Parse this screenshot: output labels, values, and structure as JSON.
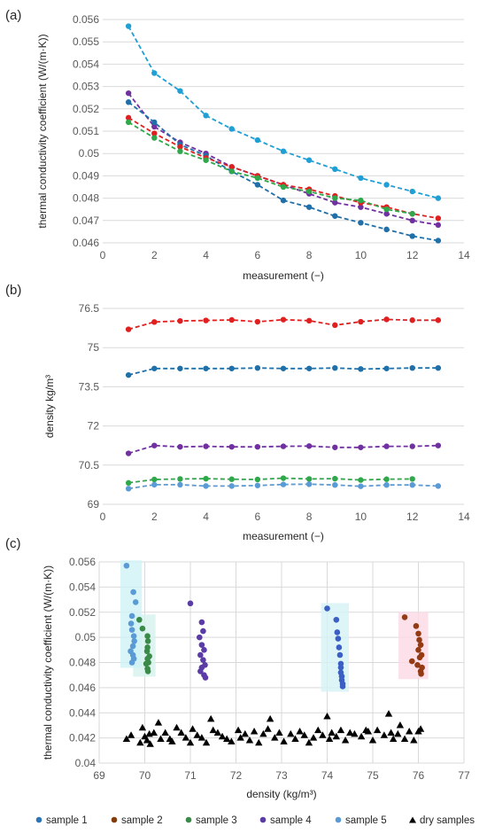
{
  "figure": {
    "panels": [
      {
        "id": "a",
        "label": "(a)"
      },
      {
        "id": "b",
        "label": "(b)"
      },
      {
        "id": "c",
        "label": "(c)"
      }
    ],
    "legend": [
      {
        "name": "sample 1",
        "color": "#2e75b6",
        "marker": "circle"
      },
      {
        "name": "sample 2",
        "color": "#843c0c",
        "marker": "circle"
      },
      {
        "name": "sample 3",
        "color": "#3a8a4a",
        "marker": "circle"
      },
      {
        "name": "sample 4",
        "color": "#5b3ba6",
        "marker": "circle"
      },
      {
        "name": "sample 5",
        "color": "#5b9bd5",
        "marker": "circle"
      },
      {
        "name": "dry samples",
        "color": "#000000",
        "marker": "triangle"
      }
    ]
  },
  "chart_data": [
    {
      "id": "a",
      "type": "line",
      "xlabel": "measurement (−)",
      "ylabel": "thermal conductivity coefficient (W/(m·K))",
      "xlim": [
        0,
        14
      ],
      "ylim": [
        0.046,
        0.056
      ],
      "xticks": [
        "0",
        "2",
        "4",
        "6",
        "8",
        "10",
        "12",
        "14"
      ],
      "yticks": [
        "0.046",
        "0.047",
        "0.048",
        "0.049",
        "0.05",
        "0.051",
        "0.052",
        "0.053",
        "0.054",
        "0.055",
        "0.056"
      ],
      "grid": "horizontal",
      "style": "dashed-line-with-markers",
      "series": [
        {
          "color": "#1f9fd4",
          "x": [
            1,
            2,
            3,
            4,
            5,
            6,
            7,
            8,
            9,
            10,
            11,
            12,
            13
          ],
          "y": [
            0.0557,
            0.0536,
            0.0528,
            0.0517,
            0.0511,
            0.0506,
            0.0501,
            0.0497,
            0.0493,
            0.0489,
            0.0486,
            0.0483,
            0.048
          ]
        },
        {
          "color": "#7030a0",
          "x": [
            1,
            2,
            3,
            4,
            5,
            6,
            7,
            8,
            9,
            10,
            11,
            12,
            13
          ],
          "y": [
            0.0527,
            0.0512,
            0.0505,
            0.05,
            0.0494,
            0.049,
            0.0486,
            0.0482,
            0.0478,
            0.0476,
            0.0473,
            0.047,
            0.0468
          ]
        },
        {
          "color": "#1f6fa8",
          "x": [
            1,
            2,
            3,
            4,
            5,
            6,
            7,
            8,
            9,
            10,
            11,
            12,
            13
          ],
          "y": [
            0.0523,
            0.0514,
            0.0504,
            0.0499,
            0.0492,
            0.0486,
            0.0479,
            0.0476,
            0.0472,
            0.0469,
            0.0466,
            0.0463,
            0.0461
          ]
        },
        {
          "color": "#e02020",
          "x": [
            1,
            2,
            3,
            4,
            5,
            6,
            7,
            8,
            9,
            10,
            11,
            12,
            13
          ],
          "y": [
            0.0516,
            0.0509,
            0.0503,
            0.0498,
            0.0494,
            0.049,
            0.0486,
            0.0484,
            0.0481,
            0.0478,
            0.0476,
            0.0473,
            0.0471
          ]
        },
        {
          "color": "#2ea84a",
          "x": [
            1,
            2,
            3,
            4,
            5,
            6,
            7,
            8,
            9,
            10,
            11,
            12
          ],
          "y": [
            0.0514,
            0.0507,
            0.0501,
            0.0497,
            0.0492,
            0.0489,
            0.0485,
            0.0483,
            0.048,
            0.0479,
            0.0475,
            0.0473
          ]
        }
      ]
    },
    {
      "id": "b",
      "type": "line",
      "xlabel": "measurement (−)",
      "ylabel": "density kg/m³",
      "xlim": [
        0,
        14
      ],
      "ylim": [
        69,
        76.5
      ],
      "xticks": [
        "0",
        "2",
        "4",
        "6",
        "8",
        "10",
        "12",
        "14"
      ],
      "yticks": [
        "69",
        "70.5",
        "72",
        "73.5",
        "75",
        "76.5"
      ],
      "grid": "horizontal",
      "style": "dashed-line-with-markers",
      "series": [
        {
          "color": "#e02020",
          "x": [
            1,
            2,
            3,
            4,
            5,
            6,
            7,
            8,
            9,
            10,
            11,
            12,
            13
          ],
          "y": [
            75.7,
            75.98,
            76.02,
            76.04,
            76.06,
            75.99,
            76.07,
            76.03,
            75.86,
            75.99,
            76.08,
            76.05,
            76.05
          ]
        },
        {
          "color": "#1f6fa8",
          "x": [
            1,
            2,
            3,
            4,
            5,
            6,
            7,
            8,
            9,
            10,
            11,
            12,
            13
          ],
          "y": [
            73.95,
            74.2,
            74.2,
            74.2,
            74.2,
            74.22,
            74.2,
            74.2,
            74.22,
            74.18,
            74.2,
            74.22,
            74.22
          ]
        },
        {
          "color": "#7030a0",
          "x": [
            1,
            2,
            3,
            4,
            5,
            6,
            7,
            8,
            9,
            10,
            11,
            12,
            13
          ],
          "y": [
            70.95,
            71.25,
            71.2,
            71.22,
            71.2,
            71.2,
            71.22,
            71.23,
            71.18,
            71.18,
            71.22,
            71.22,
            71.25
          ]
        },
        {
          "color": "#2ea84a",
          "x": [
            1,
            2,
            3,
            4,
            5,
            6,
            7,
            8,
            9,
            10,
            11,
            12
          ],
          "y": [
            69.82,
            69.95,
            69.97,
            69.98,
            69.96,
            69.95,
            70.0,
            69.97,
            69.98,
            69.93,
            69.96,
            69.97
          ]
        },
        {
          "color": "#5b9bd5",
          "x": [
            1,
            2,
            3,
            4,
            5,
            6,
            7,
            8,
            9,
            10,
            11,
            12,
            13
          ],
          "y": [
            69.6,
            69.75,
            69.75,
            69.7,
            69.7,
            69.72,
            69.76,
            69.77,
            69.74,
            69.69,
            69.74,
            69.74,
            69.7
          ]
        }
      ]
    },
    {
      "id": "c",
      "type": "scatter",
      "xlabel": "density (kg/m³)",
      "ylabel": "thermal conductivity coefficient (W/(m·K))",
      "xlim": [
        69,
        77
      ],
      "ylim": [
        0.04,
        0.056
      ],
      "xticks": [
        "69",
        "70",
        "71",
        "72",
        "73",
        "74",
        "75",
        "76",
        "77"
      ],
      "yticks": [
        "0.04",
        "0.042",
        "0.044",
        "0.046",
        "0.048",
        "0.05",
        "0.052",
        "0.054",
        "0.056"
      ],
      "grid": "both",
      "series": [
        {
          "name": "sample 1",
          "color": "#3b5fc4",
          "x": [
            74.0,
            74.2,
            74.22,
            74.24,
            74.26,
            74.28,
            74.3,
            74.3,
            74.3,
            74.32,
            74.32,
            74.34,
            74.34
          ],
          "y": [
            0.0523,
            0.0514,
            0.0504,
            0.0499,
            0.0492,
            0.0486,
            0.0479,
            0.0476,
            0.0472,
            0.0469,
            0.0466,
            0.0463,
            0.0461
          ]
        },
        {
          "name": "sample 2",
          "color": "#943b14",
          "x": [
            75.7,
            75.95,
            76.0,
            76.02,
            76.05,
            76.0,
            76.07,
            76.03,
            75.86,
            75.98,
            76.08,
            76.05,
            76.06
          ],
          "y": [
            0.0516,
            0.0509,
            0.0503,
            0.0498,
            0.0494,
            0.049,
            0.0486,
            0.0484,
            0.0481,
            0.0478,
            0.0476,
            0.0473,
            0.0471
          ]
        },
        {
          "name": "sample 3",
          "color": "#3a8a4a",
          "x": [
            69.88,
            69.95,
            70.06,
            70.07,
            70.06,
            70.05,
            70.1,
            70.06,
            70.08,
            70.03,
            70.06,
            70.07
          ],
          "y": [
            0.0514,
            0.0507,
            0.0501,
            0.0497,
            0.0492,
            0.0489,
            0.0485,
            0.0483,
            0.048,
            0.0479,
            0.0475,
            0.0473
          ]
        },
        {
          "name": "sample 4",
          "color": "#5b3ba6",
          "x": [
            71.0,
            71.25,
            71.28,
            71.2,
            71.25,
            71.3,
            71.22,
            71.28,
            71.32,
            71.25,
            71.22,
            71.3,
            71.33
          ],
          "y": [
            0.0527,
            0.0512,
            0.0505,
            0.05,
            0.0494,
            0.049,
            0.0486,
            0.0482,
            0.0478,
            0.0476,
            0.0473,
            0.047,
            0.0468
          ]
        },
        {
          "name": "sample 5",
          "color": "#5b9bd5",
          "x": [
            69.6,
            69.75,
            69.8,
            69.72,
            69.7,
            69.72,
            69.76,
            69.77,
            69.74,
            69.69,
            69.74,
            69.76,
            69.72
          ],
          "y": [
            0.0557,
            0.0536,
            0.0528,
            0.0517,
            0.0511,
            0.0506,
            0.0501,
            0.0497,
            0.0493,
            0.0489,
            0.0486,
            0.0483,
            0.048
          ]
        },
        {
          "name": "dry samples",
          "color": "#000000",
          "x": [
            69.6,
            69.7,
            69.9,
            69.95,
            70.0,
            70.05,
            70.1,
            70.12,
            70.2,
            70.3,
            70.35,
            70.45,
            70.55,
            70.6,
            70.7,
            70.8,
            70.9,
            71.0,
            71.05,
            71.15,
            71.25,
            71.35,
            71.45,
            71.5,
            71.6,
            71.7,
            71.8,
            71.9,
            72.05,
            72.1,
            72.2,
            72.3,
            72.4,
            72.5,
            72.6,
            72.7,
            72.75,
            72.85,
            72.95,
            73.05,
            73.2,
            73.3,
            73.4,
            73.5,
            73.6,
            73.7,
            73.8,
            73.9,
            74.0,
            74.05,
            74.1,
            74.2,
            74.3,
            74.4,
            74.5,
            74.6,
            74.75,
            74.85,
            74.9,
            75.0,
            75.1,
            75.25,
            75.35,
            75.4,
            75.45,
            75.55,
            75.6,
            75.7,
            75.8,
            75.9,
            76.0,
            76.05
          ],
          "y": [
            0.0419,
            0.0422,
            0.0416,
            0.0428,
            0.0421,
            0.0418,
            0.0423,
            0.0415,
            0.0424,
            0.0432,
            0.0419,
            0.0424,
            0.0419,
            0.0417,
            0.0428,
            0.0424,
            0.042,
            0.0416,
            0.0427,
            0.0422,
            0.042,
            0.0416,
            0.0435,
            0.0426,
            0.0424,
            0.0421,
            0.0419,
            0.0417,
            0.0426,
            0.042,
            0.0423,
            0.0418,
            0.0425,
            0.0416,
            0.0423,
            0.0427,
            0.0435,
            0.042,
            0.0424,
            0.0417,
            0.0423,
            0.0419,
            0.0425,
            0.0422,
            0.0416,
            0.042,
            0.0426,
            0.0422,
            0.0437,
            0.0419,
            0.0424,
            0.0421,
            0.0426,
            0.0418,
            0.0424,
            0.0423,
            0.0421,
            0.0426,
            0.0425,
            0.0418,
            0.0426,
            0.0422,
            0.0439,
            0.0424,
            0.0419,
            0.0423,
            0.043,
            0.0419,
            0.0425,
            0.0418,
            0.0425,
            0.0427
          ]
        }
      ]
    }
  ]
}
